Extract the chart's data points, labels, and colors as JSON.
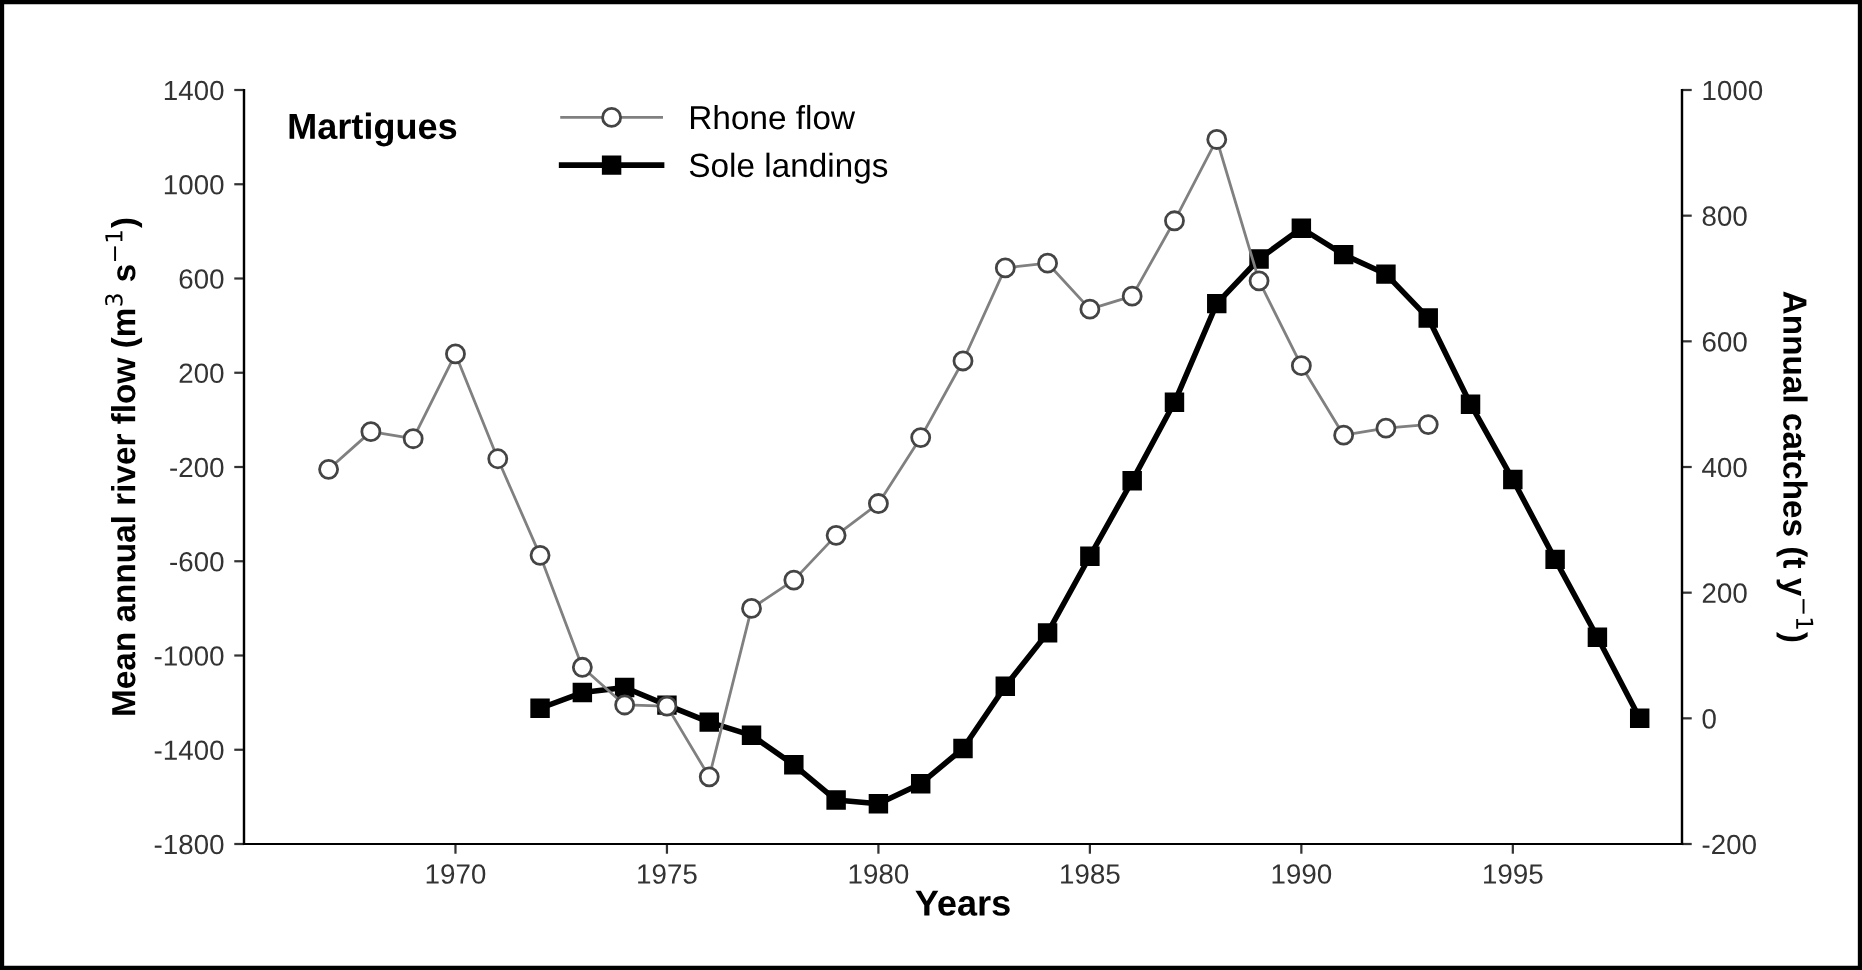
{
  "chart_data": {
    "type": "line",
    "xlabel": "Years",
    "ylabel": "Mean annual river flow (m$^{3}$ s$^{−1}$)",
    "y2label": "Annual catches (t y$^{−1}$)",
    "annotations": [
      "Martigues"
    ],
    "xlim": [
      1965,
      1999
    ],
    "xticks": [
      1970,
      1975,
      1980,
      1985,
      1990,
      1995
    ],
    "ylim": [
      -1800,
      1400
    ],
    "yticks": [
      -1800,
      -1400,
      -1000,
      -600,
      -200,
      200,
      600,
      1000,
      1400
    ],
    "y2lim": [
      -200,
      1000
    ],
    "y2ticks": [
      -200,
      0,
      200,
      400,
      600,
      800,
      1000
    ],
    "grid": false,
    "legend": "top",
    "series": [
      {
        "name": "Rhone flow",
        "color": "#808080",
        "marker": "circle",
        "x": [
          1967,
          1968,
          1969,
          1970,
          1971,
          1972,
          1973,
          1974,
          1975,
          1976,
          1977,
          1978,
          1979,
          1980,
          1981,
          1982,
          1983,
          1984,
          1985,
          1986,
          1987,
          1988,
          1989,
          1990,
          1991,
          1992,
          1993
        ],
        "values": [
          -210,
          -50,
          -80,
          280,
          -165,
          -575,
          -1050,
          -1210,
          -1215,
          -1515,
          -800,
          -680,
          -490,
          -355,
          -75,
          250,
          645,
          665,
          470,
          525,
          845,
          1190,
          590,
          230,
          -65,
          -35,
          -20
        ]
      },
      {
        "name": "Sole landings",
        "color": "#000000",
        "marker": "square",
        "axis": "y2",
        "x": [
          1972,
          1973,
          1974,
          1975,
          1976,
          1977,
          1978,
          1979,
          1980,
          1981,
          1982,
          1983,
          1984,
          1985,
          1986,
          1987,
          1988,
          1989,
          1990,
          1991,
          1992,
          1993,
          1994,
          1995,
          1996,
          1997,
          1998
        ],
        "values": [
          16,
          41,
          49,
          21,
          -6,
          -27,
          -74,
          -130,
          -136,
          -104,
          -48,
          51,
          136,
          258,
          378,
          503,
          660,
          731,
          780,
          738,
          707,
          637,
          500,
          380,
          253,
          129,
          0
        ]
      }
    ]
  }
}
